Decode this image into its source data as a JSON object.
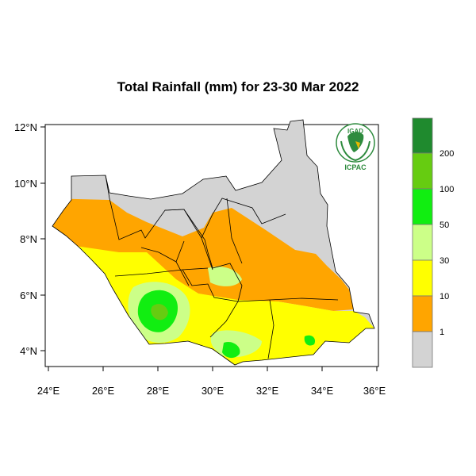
{
  "title": "Total Rainfall (mm) for 23-30 Mar 2022",
  "axes": {
    "x_ticks": [
      "24°E",
      "26°E",
      "28°E",
      "30°E",
      "32°E",
      "34°E",
      "36°E"
    ],
    "y_ticks": [
      "12°N",
      "10°N",
      "8°N",
      "6°N",
      "4°N"
    ]
  },
  "logo": {
    "top_text": "IGAD",
    "bottom_text": "ICPAC"
  },
  "legend": {
    "labels": [
      "200",
      "100",
      "50",
      "30",
      "10",
      "1"
    ],
    "colors": [
      "#1f8a2e",
      "#66cc11",
      "#11ee11",
      "#ccff88",
      "#ffff00",
      "#ffa500",
      "#d3d3d3"
    ]
  },
  "colors": {
    "no_rain": "#d3d3d3",
    "r1_10": "#ffa500",
    "r10_30": "#ffff00",
    "r30_50": "#ccff88",
    "r50_100": "#11ee11",
    "r100_200": "#66cc11",
    "r200": "#1f8a2e"
  }
}
